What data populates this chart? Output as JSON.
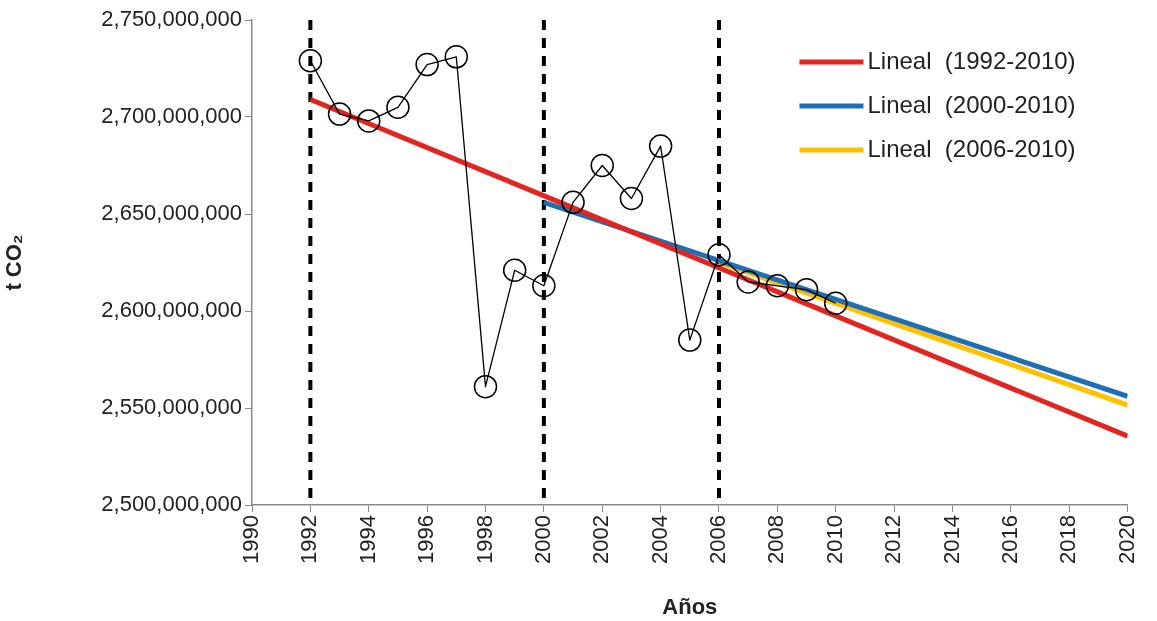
{
  "chart_data": {
    "type": "line",
    "xlabel": "Años",
    "ylabel": "t CO₂",
    "xlim": [
      1990,
      2020
    ],
    "xticks": [
      1990,
      1992,
      1994,
      1996,
      1998,
      2000,
      2002,
      2004,
      2006,
      2008,
      2010,
      2012,
      2014,
      2016,
      2018,
      2020
    ],
    "ylim": [
      2500000000,
      2750000000
    ],
    "yticks": [
      {
        "value": 2500000000,
        "label": "2,500,000,000"
      },
      {
        "value": 2550000000,
        "label": "2,550,000,000"
      },
      {
        "value": 2600000000,
        "label": "2,600,000,000"
      },
      {
        "value": 2650000000,
        "label": "2,650,000,000"
      },
      {
        "value": 2700000000,
        "label": "2,700,000,000"
      },
      {
        "value": 2750000000,
        "label": "2,750,000,000"
      }
    ],
    "grid": false,
    "legend": "top right",
    "marker": "circle",
    "series": [
      {
        "color": "#000000",
        "x": [
          1992,
          1993,
          1994,
          1995,
          1996,
          1997,
          1998,
          1999,
          2000,
          2001,
          2002,
          2003,
          2004,
          2005,
          2006,
          2007,
          2008,
          2009,
          2010
        ],
        "values": [
          2729000000,
          2701500000,
          2698000000,
          2705000000,
          2727000000,
          2731000000,
          2561000000,
          2621000000,
          2613000000,
          2656000000,
          2675000000,
          2658000000,
          2685000000,
          2585000000,
          2629000000,
          2615000000,
          2613000000,
          2611000000,
          2604000000
        ]
      },
      {
        "name": "Lineal  (1992-2010)",
        "color": "#e3241f",
        "marker": "none",
        "x": [
          1992,
          2020
        ],
        "values": [
          2709000000,
          2535500000
        ]
      },
      {
        "name": "Lineal  (2000-2010)",
        "color": "#1f6fb8",
        "marker": "none",
        "x": [
          2000,
          2020
        ],
        "values": [
          2656000000,
          2556000000
        ]
      },
      {
        "name": "Lineal  (2006-2010)",
        "color": "#ffc000",
        "marker": "none",
        "x": [
          2006,
          2020
        ],
        "values": [
          2625000000,
          2551500000
        ]
      }
    ],
    "ref_lines": [
      {
        "axis": "x",
        "value": 1992,
        "color": "#000000",
        "line_style": "dashed"
      },
      {
        "axis": "x",
        "value": 2000,
        "color": "#000000",
        "line_style": "dashed"
      },
      {
        "axis": "x",
        "value": 2006,
        "color": "#000000",
        "line_style": "dashed"
      }
    ]
  }
}
